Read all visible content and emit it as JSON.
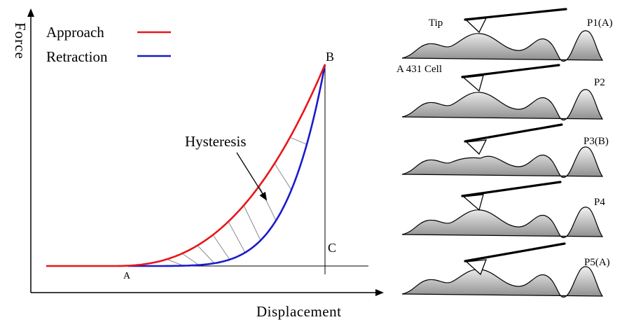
{
  "chart": {
    "y_axis_label": "Force",
    "x_axis_label": "Displacement",
    "legend": [
      {
        "label": "Approach",
        "color": "#e8151b"
      },
      {
        "label": "Retraction",
        "color": "#1a1acd"
      }
    ],
    "point_labels": {
      "a": "A",
      "b": "B",
      "c": "C"
    },
    "annotation": "Hysteresis"
  },
  "panels": {
    "tip_label": "Tip",
    "cell_label": "A 431 Cell",
    "positions": [
      "P1(A)",
      "P2",
      "P3(B)",
      "P4",
      "P5(A)"
    ]
  },
  "colors": {
    "cell_fill_top": "#f2f2f2",
    "cell_fill_bottom": "#8c8c8c"
  }
}
